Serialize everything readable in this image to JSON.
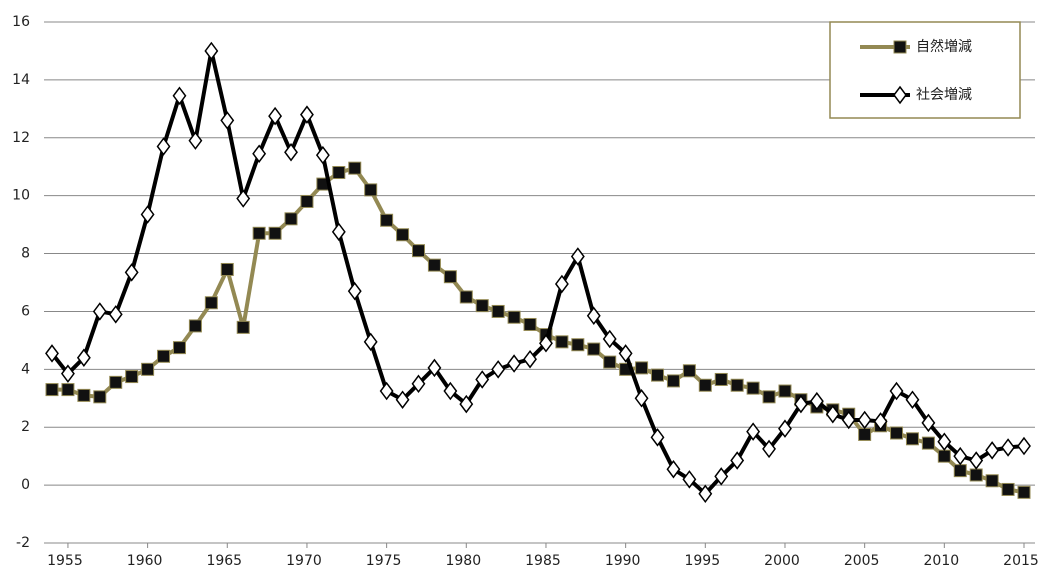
{
  "chart_data": {
    "type": "line",
    "x": [
      1954,
      1955,
      1956,
      1957,
      1958,
      1959,
      1960,
      1961,
      1962,
      1963,
      1964,
      1965,
      1966,
      1967,
      1968,
      1969,
      1970,
      1971,
      1972,
      1973,
      1974,
      1975,
      1976,
      1977,
      1978,
      1979,
      1980,
      1981,
      1982,
      1983,
      1984,
      1985,
      1986,
      1987,
      1988,
      1989,
      1990,
      1991,
      1992,
      1993,
      1994,
      1995,
      1996,
      1997,
      1998,
      1999,
      2000,
      2001,
      2002,
      2003,
      2004,
      2005,
      2006,
      2007,
      2008,
      2009,
      2010,
      2011,
      2012,
      2013,
      2014,
      2015
    ],
    "xlim": [
      1954,
      2015
    ],
    "xticks": [
      1955,
      1960,
      1965,
      1970,
      1975,
      1980,
      1985,
      1990,
      1995,
      2000,
      2005,
      2010,
      2015
    ],
    "ylim": [
      -2,
      16
    ],
    "yticks": [
      -2,
      0,
      2,
      4,
      6,
      8,
      10,
      12,
      14,
      16
    ],
    "grid": true,
    "legend": "top-right",
    "series": [
      {
        "name": "自然増減",
        "color": "#938953",
        "marker": "square",
        "values": [
          3.3,
          3.3,
          3.1,
          3.05,
          3.55,
          3.75,
          4.0,
          4.45,
          4.75,
          5.5,
          6.3,
          7.45,
          5.45,
          8.7,
          8.7,
          9.2,
          9.8,
          10.4,
          10.8,
          10.95,
          10.2,
          9.15,
          8.65,
          8.1,
          7.6,
          7.2,
          6.5,
          6.2,
          6.0,
          5.8,
          5.55,
          5.2,
          4.95,
          4.85,
          4.7,
          4.25,
          4.0,
          4.05,
          3.8,
          3.6,
          3.95,
          3.45,
          3.65,
          3.45,
          3.35,
          3.05,
          3.25,
          2.95,
          2.7,
          2.6,
          2.45,
          1.75,
          2.05,
          1.8,
          1.6,
          1.45,
          1.0,
          0.5,
          0.35,
          0.15,
          -0.15,
          -0.25
        ]
      },
      {
        "name": "社会増減",
        "color": "#000000",
        "marker": "diamond",
        "values": [
          4.55,
          3.85,
          4.4,
          6.0,
          5.9,
          7.35,
          9.35,
          11.7,
          13.45,
          11.9,
          15.0,
          12.6,
          9.9,
          11.45,
          12.75,
          11.5,
          12.8,
          11.4,
          8.75,
          6.7,
          4.95,
          3.25,
          2.95,
          3.5,
          4.05,
          3.25,
          2.8,
          3.65,
          4.0,
          4.2,
          4.35,
          4.9,
          6.95,
          7.9,
          5.85,
          5.05,
          4.55,
          3.0,
          1.65,
          0.55,
          0.2,
          -0.3,
          0.3,
          0.85,
          1.85,
          1.25,
          1.95,
          2.8,
          2.9,
          2.45,
          2.25,
          2.25,
          2.2,
          3.25,
          2.95,
          2.15,
          1.5,
          1.0,
          0.85,
          1.2,
          1.3,
          1.35
        ]
      }
    ]
  }
}
